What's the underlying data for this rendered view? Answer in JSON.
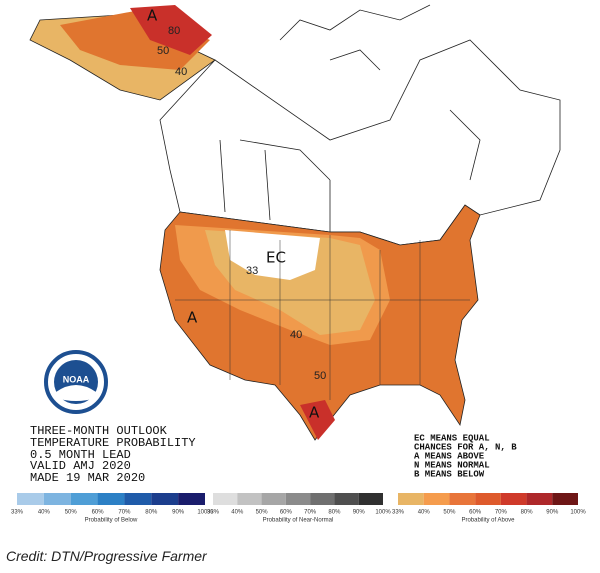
{
  "map_labels": [
    "A",
    "80",
    "50",
    "40",
    "EC",
    "33",
    "A",
    "40",
    "50",
    "A"
  ],
  "logo": "NOAA",
  "outlook": [
    "THREE-MONTH OUTLOOK",
    "TEMPERATURE PROBABILITY",
    "0.5 MONTH LEAD",
    "VALID AMJ 2020",
    "MADE 19 MAR 2020"
  ],
  "key": [
    "EC MEANS EQUAL",
    "CHANCES FOR A, N, B",
    "A MEANS ABOVE",
    "N MEANS NORMAL",
    "B MEANS BELOW"
  ],
  "legend": [
    {
      "caption": "Probability of Below",
      "ticks": [
        "33%",
        "40%",
        "50%",
        "60%",
        "70%",
        "80%",
        "90%",
        "100%"
      ]
    },
    {
      "caption": "Probability of Near-Normal",
      "ticks": [
        "33%",
        "40%",
        "50%",
        "60%",
        "70%",
        "80%",
        "90%",
        "100%"
      ]
    },
    {
      "caption": "Probability of Above",
      "ticks": [
        "33%",
        "40%",
        "50%",
        "60%",
        "70%",
        "80%",
        "90%",
        "100%"
      ]
    }
  ],
  "credit": "Credit: DTN/Progressive Farmer"
}
